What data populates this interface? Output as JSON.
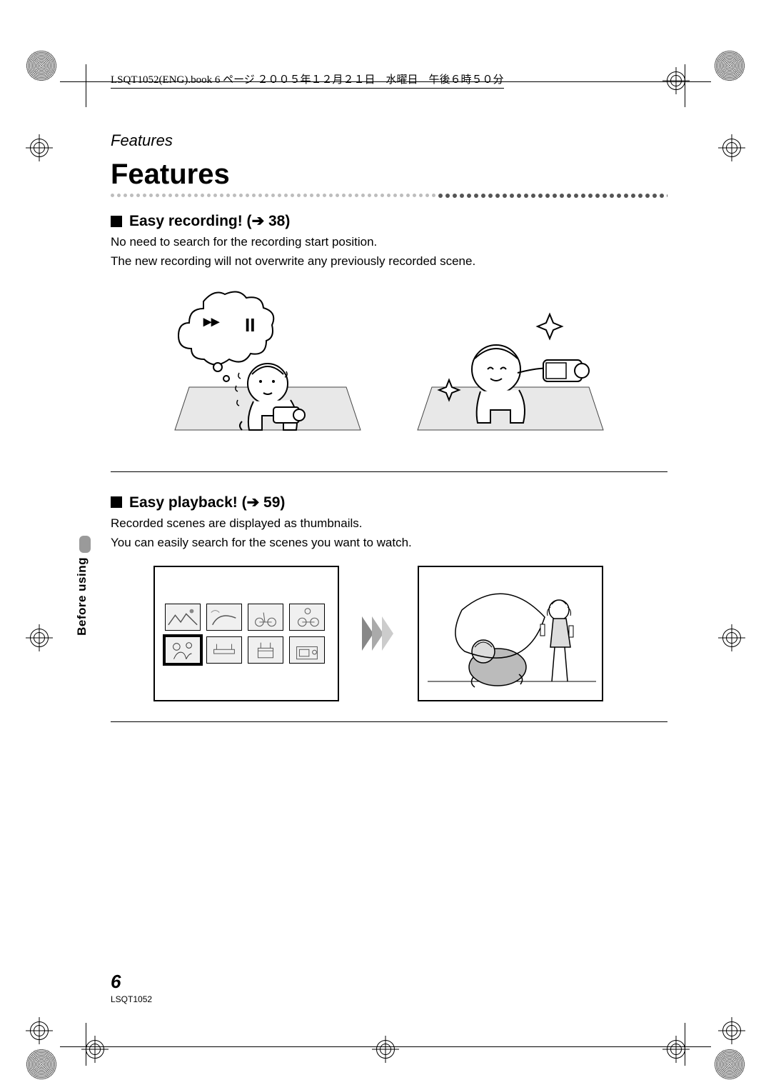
{
  "header_stamp": "LSQT1052(ENG).book  6 ページ  ２００５年１２月２１日　水曜日　午後６時５０分",
  "breadcrumb": "Features",
  "main_title": "Features",
  "section1": {
    "title_prefix": "Easy recording! (",
    "title_page": "38",
    "title_suffix": ")",
    "line1": "No need to search for the recording start position.",
    "line2": "The new recording will not overwrite any previously recorded scene."
  },
  "section2": {
    "title_prefix": "Easy playback! (",
    "title_page": "59",
    "title_suffix": ")",
    "line1": "Recorded scenes are displayed as thumbnails.",
    "line2": "You can easily search for the scenes you want to watch."
  },
  "side_tab_label": "Before using",
  "page_number": "6",
  "doc_id": "LSQT1052",
  "colors": {
    "text": "#000000",
    "bg": "#ffffff",
    "dot_light": "#bdbdbd",
    "dot_dark": "#555555",
    "tab_gray": "#9a9a9a"
  }
}
